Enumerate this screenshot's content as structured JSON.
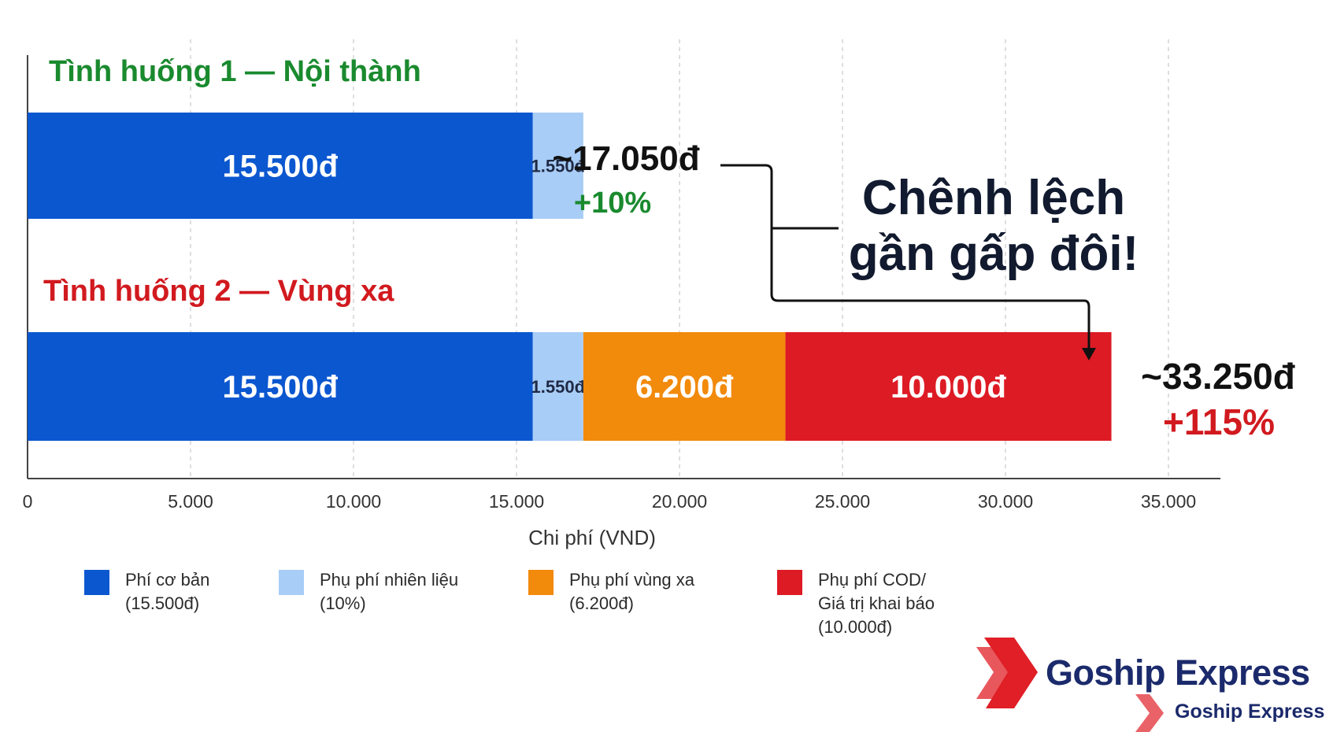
{
  "chart_data": {
    "type": "bar",
    "orientation": "horizontal",
    "stacked": true,
    "xlabel": "Chi phí (VND)",
    "xlim": [
      0,
      37000
    ],
    "xticks": [
      0,
      5000,
      10000,
      15000,
      20000,
      25000,
      30000,
      35000
    ],
    "xtick_labels": [
      "0",
      "5.000",
      "10.000",
      "15.000",
      "20.000",
      "25.000",
      "30.000",
      "35.000"
    ],
    "grid": "vertical dashed",
    "categories": [
      "Tình huống 1 — Nội thành",
      "Tình huống 2 — Vùng xa"
    ],
    "category_colors": [
      "#1a8a2e",
      "#d11a1f"
    ],
    "series": [
      {
        "name": "Phí cơ bản",
        "color": "#0b57d0",
        "values": [
          15500,
          15500
        ],
        "labels": [
          "15.500đ",
          "15.500đ"
        ]
      },
      {
        "name": "Phụ phí nhiên liệu",
        "color": "#a8cdf7",
        "values": [
          1550,
          1550
        ],
        "labels": [
          "1.550đ",
          "1.550đ"
        ]
      },
      {
        "name": "Phụ phí vùng xa",
        "color": "#f28a0c",
        "values": [
          0,
          6200
        ],
        "labels": [
          "",
          "6.200đ"
        ]
      },
      {
        "name": "Phụ phí COD/ Giá trị khai báo",
        "color": "#dd1b25",
        "values": [
          0,
          10000
        ],
        "labels": [
          "",
          "10.000đ"
        ]
      }
    ],
    "totals": [
      {
        "label": "~17.050đ",
        "change": "+10%",
        "change_color": "#1a8a2e"
      },
      {
        "label": "~33.250đ",
        "change": "+115%",
        "change_color": "#d11a1f"
      }
    ],
    "annotation": {
      "lines": [
        "Chênh lệch",
        "gần gấp đôi!"
      ]
    },
    "legend": {
      "placement": "bottom",
      "items": [
        {
          "lines": [
            "Phí cơ bản",
            "(15.500đ)"
          ],
          "color": "#0b57d0"
        },
        {
          "lines": [
            "Phụ phí nhiên liệu",
            "(10%)"
          ],
          "color": "#a8cdf7"
        },
        {
          "lines": [
            "Phụ phí vùng xa",
            "(6.200đ)"
          ],
          "color": "#f28a0c"
        },
        {
          "lines": [
            "Phụ phí COD/",
            "Giá trị khai báo",
            "(10.000đ)"
          ],
          "color": "#dd1b25"
        }
      ]
    }
  },
  "brand": {
    "name": "Goship Express",
    "sub_name": "Goship Express",
    "color": "#1b2a6b",
    "logo_color": "#e01f26"
  }
}
